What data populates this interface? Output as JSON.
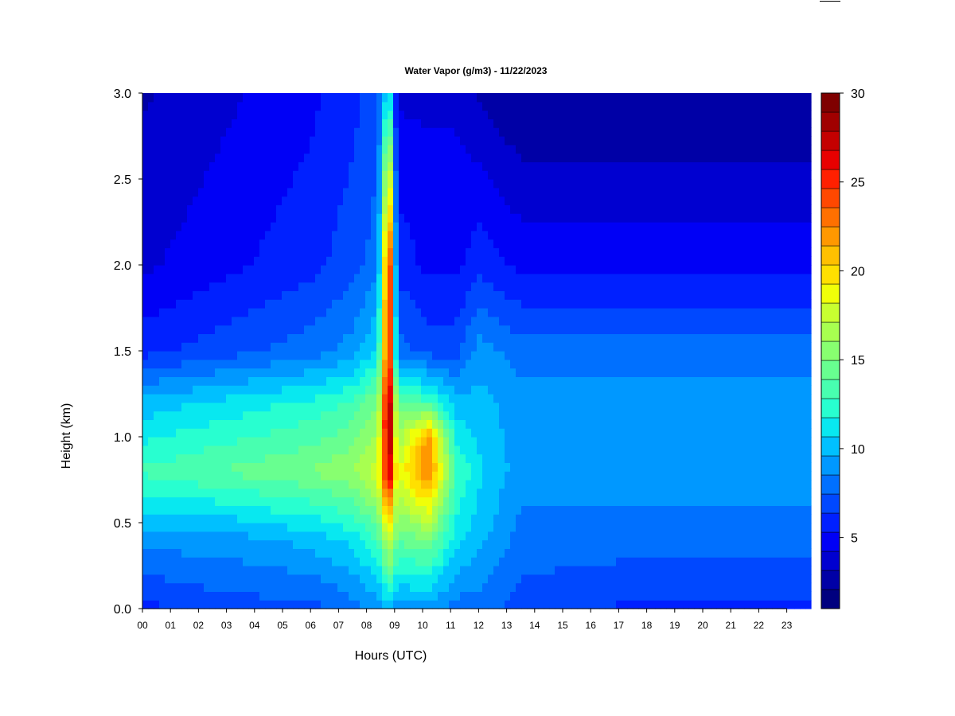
{
  "chart_data": {
    "type": "heatmap",
    "title": "Water Vapor (g/m3) - 11/22/2023",
    "xlabel": "Hours (UTC)",
    "ylabel": "Height (km)",
    "x_ticks": [
      "00",
      "01",
      "02",
      "03",
      "04",
      "05",
      "06",
      "07",
      "08",
      "09",
      "10",
      "11",
      "12",
      "13",
      "14",
      "15",
      "16",
      "17",
      "18",
      "19",
      "20",
      "21",
      "22",
      "23"
    ],
    "y_ticks": [
      "0.0",
      "0.5",
      "1.0",
      "1.5",
      "2.0",
      "2.5",
      "3.0"
    ],
    "xlim": [
      0,
      24
    ],
    "ylim": [
      0,
      3.0
    ],
    "colorbar": {
      "range": [
        1,
        30
      ],
      "ticks": [
        "5",
        "10",
        "15",
        "20",
        "25",
        "30"
      ],
      "colors": [
        "#00007f",
        "#0000a6",
        "#0000d0",
        "#0000f6",
        "#0020ff",
        "#0048ff",
        "#0070ff",
        "#0098ff",
        "#00c0ff",
        "#08e8f0",
        "#28ffd0",
        "#48ffb0",
        "#68ff90",
        "#88ff70",
        "#a8ff50",
        "#c8ff30",
        "#f0ff08",
        "#ffe000",
        "#ffc000",
        "#ff9800",
        "#ff7000",
        "#ff4800",
        "#ff2000",
        "#e80000",
        "#c40000",
        "#a00000",
        "#7f0000"
      ]
    },
    "profiles": [
      {
        "x": 0.0,
        "levels_km": [
          0,
          0.4,
          0.8,
          1.2,
          1.5,
          2.0,
          3.0
        ],
        "values": [
          6,
          9,
          13,
          10,
          6,
          4,
          3
        ]
      },
      {
        "x": 3.0,
        "levels_km": [
          0,
          0.4,
          0.8,
          1.2,
          1.5,
          2.0,
          3.0
        ],
        "values": [
          7,
          9,
          14,
          11,
          7,
          5,
          4
        ]
      },
      {
        "x": 6.0,
        "levels_km": [
          0,
          0.4,
          0.8,
          1.2,
          1.5,
          2.0,
          3.0
        ],
        "values": [
          7,
          10,
          15,
          12,
          8,
          6,
          5
        ]
      },
      {
        "x": 7.5,
        "levels_km": [
          0,
          0.4,
          0.8,
          1.2,
          1.5,
          2.0,
          3.0
        ],
        "values": [
          8,
          11,
          16,
          13,
          9,
          7,
          6
        ]
      },
      {
        "x": 8.4,
        "levels_km": [
          0,
          0.4,
          0.8,
          1.2,
          1.5,
          2.0,
          3.0
        ],
        "values": [
          9,
          13,
          18,
          15,
          11,
          8,
          7
        ]
      },
      {
        "x": 8.8,
        "levels_km": [
          0,
          0.4,
          0.8,
          1.1,
          1.5,
          2.0,
          2.5,
          3.0
        ],
        "values": [
          10,
          18,
          28,
          30,
          27,
          27,
          20,
          12
        ]
      },
      {
        "x": 9.1,
        "levels_km": [
          0,
          0.4,
          0.8,
          1.2,
          1.5,
          2.0,
          3.0
        ],
        "values": [
          9,
          14,
          18,
          14,
          8,
          6,
          4
        ]
      },
      {
        "x": 10.2,
        "levels_km": [
          0,
          0.4,
          0.8,
          1.0,
          1.2,
          1.5,
          2.0,
          3.0
        ],
        "values": [
          9,
          15,
          23,
          22,
          13,
          7,
          5,
          4
        ]
      },
      {
        "x": 11.2,
        "levels_km": [
          0,
          0.4,
          0.8,
          1.2,
          1.5,
          2.0,
          3.0
        ],
        "values": [
          8,
          11,
          13,
          10,
          7,
          5,
          4
        ]
      },
      {
        "x": 12.0,
        "levels_km": [
          0,
          0.4,
          0.8,
          1.2,
          1.5,
          2.0,
          3.0
        ],
        "values": [
          8,
          10,
          11,
          10,
          9,
          6,
          3
        ]
      },
      {
        "x": 13.5,
        "levels_km": [
          0,
          0.4,
          0.8,
          1.2,
          1.5,
          2.0,
          3.0
        ],
        "values": [
          7,
          8,
          9,
          9,
          8,
          5,
          2
        ]
      },
      {
        "x": 18.0,
        "levels_km": [
          0,
          0.4,
          0.8,
          1.2,
          1.5,
          2.0,
          3.0
        ],
        "values": [
          6,
          8,
          9,
          9,
          8,
          5,
          2
        ]
      },
      {
        "x": 24.0,
        "levels_km": [
          0,
          0.4,
          0.8,
          1.2,
          1.5,
          2.0,
          3.0
        ],
        "values": [
          6,
          8,
          9,
          9,
          8,
          5,
          2
        ]
      }
    ]
  }
}
